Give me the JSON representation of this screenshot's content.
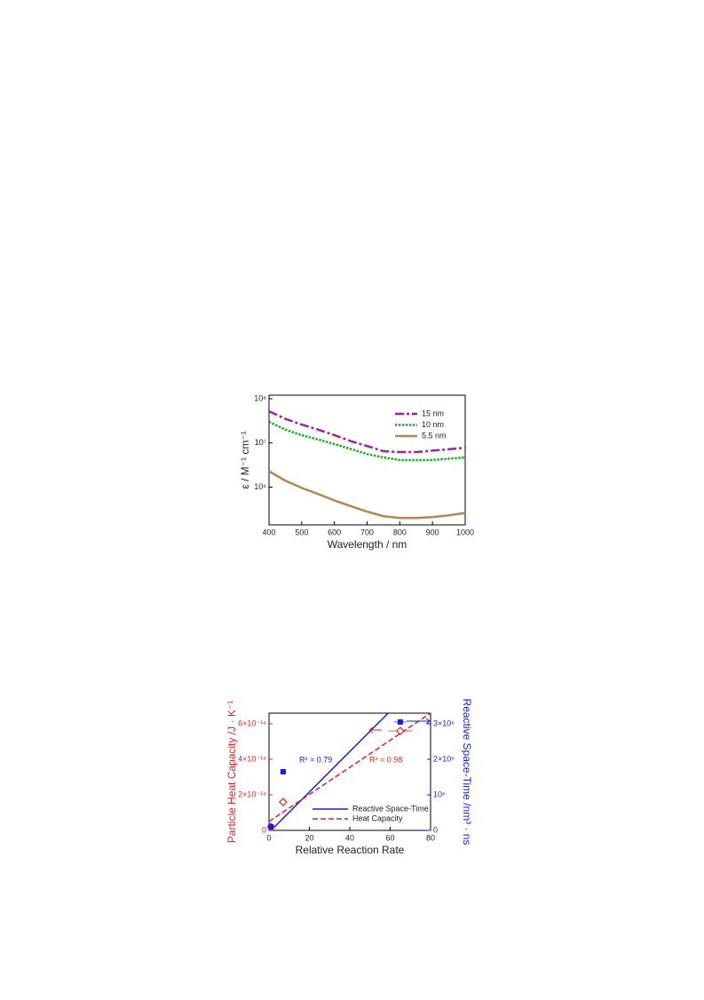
{
  "chart_data": [
    {
      "type": "line",
      "ylabel": "ε / M⁻¹ cm⁻¹",
      "xlabel": "Wavelength / nm",
      "log_y": true,
      "legend": "upper right",
      "x": [
        400,
        450,
        500,
        550,
        600,
        650,
        700,
        750,
        800,
        850,
        900,
        950,
        1000
      ],
      "series": [
        {
          "name": "15 nm",
          "color": "#a020a0",
          "style": "dashdot",
          "values": [
            52000000,
            35000000,
            26000000,
            20000000,
            15000000,
            11000000,
            8500000,
            6500000,
            6200000,
            6200000,
            6700000,
            7200000,
            7800000
          ]
        },
        {
          "name": "10 nm",
          "color": "#22aa22",
          "style": "dotted",
          "values": [
            30000000,
            20000000,
            15000000,
            12000000,
            9400000,
            7300000,
            5600000,
            4700000,
            4100000,
            4100000,
            4100000,
            4400000,
            4700000
          ]
        },
        {
          "name": "5.5 nm",
          "color": "#b08850",
          "style": "solid",
          "values": [
            2300000,
            1400000,
            960000,
            700000,
            500000,
            370000,
            280000,
            220000,
            200000,
            200000,
            210000,
            230000,
            260000
          ]
        }
      ],
      "xlim": [
        400,
        1000
      ],
      "xticks": [
        400,
        500,
        600,
        700,
        800,
        900,
        1000
      ],
      "ylim": [
        140000,
        120000000
      ],
      "yticks": [
        {
          "value": 1000000,
          "label": "10⁶"
        },
        {
          "value": 10000000,
          "label": "10⁷"
        },
        {
          "value": 100000000,
          "label": "10⁸"
        }
      ]
    },
    {
      "type": "scatter",
      "xlabel": "Relative Reaction Rate",
      "ylabel": "Particle Heat Capacity /J · K⁻¹",
      "y2label": "Reactive Space-Time /nm³ · ns",
      "xlim": [
        0,
        80
      ],
      "xticks": [
        0,
        20,
        40,
        60,
        80
      ],
      "ylim": [
        0,
        6.6e-18
      ],
      "yticks": [
        0,
        {
          "value": 2e-18,
          "label": "2×10⁻¹⁸"
        },
        {
          "value": 4e-18,
          "label": "4×10⁻¹⁸"
        },
        {
          "value": 6e-18,
          "label": "6×10⁻¹⁸"
        }
      ],
      "y2lim": [
        0,
        3300000
      ],
      "y2ticks": [
        0,
        {
          "value": 1000000,
          "label": "10⁶"
        },
        {
          "value": 2000000,
          "label": "2×10⁶"
        },
        {
          "value": 3000000,
          "label": "3×10⁶"
        }
      ],
      "ycolor": "#e02020",
      "y2color": "#1a1ae0",
      "series": [
        {
          "name": "Reactive Space-Time",
          "color": "#1a1ae0",
          "style": "solid",
          "axis": "y2",
          "x": [
            1,
            59
          ],
          "values": [
            0,
            3300000
          ]
        },
        {
          "name": "Heat Capacity",
          "color": "#e02020",
          "style": "dashed",
          "x": [
            0,
            80
          ],
          "values": [
            5e-19,
            6.6e-18
          ]
        }
      ],
      "points": [
        {
          "color": "#e02020",
          "marker": "diamond",
          "x": [
            1,
            7,
            65
          ],
          "values": [
            2e-19,
            1.6e-18,
            5.6e-18
          ],
          "xerr": [
            0.5,
            1,
            6
          ]
        },
        {
          "color": "#1a1ae0",
          "marker": "square",
          "axis": "y2",
          "x": [
            1,
            7,
            65
          ],
          "values": [
            100000,
            1650000,
            3050000
          ],
          "xerr": [
            0.5,
            1.5,
            3
          ]
        }
      ],
      "annotations": [
        {
          "text": "R² = 0.79",
          "color": "#1a1ae0"
        },
        {
          "text": "R² = 0.98",
          "color": "#e02020"
        }
      ]
    }
  ]
}
